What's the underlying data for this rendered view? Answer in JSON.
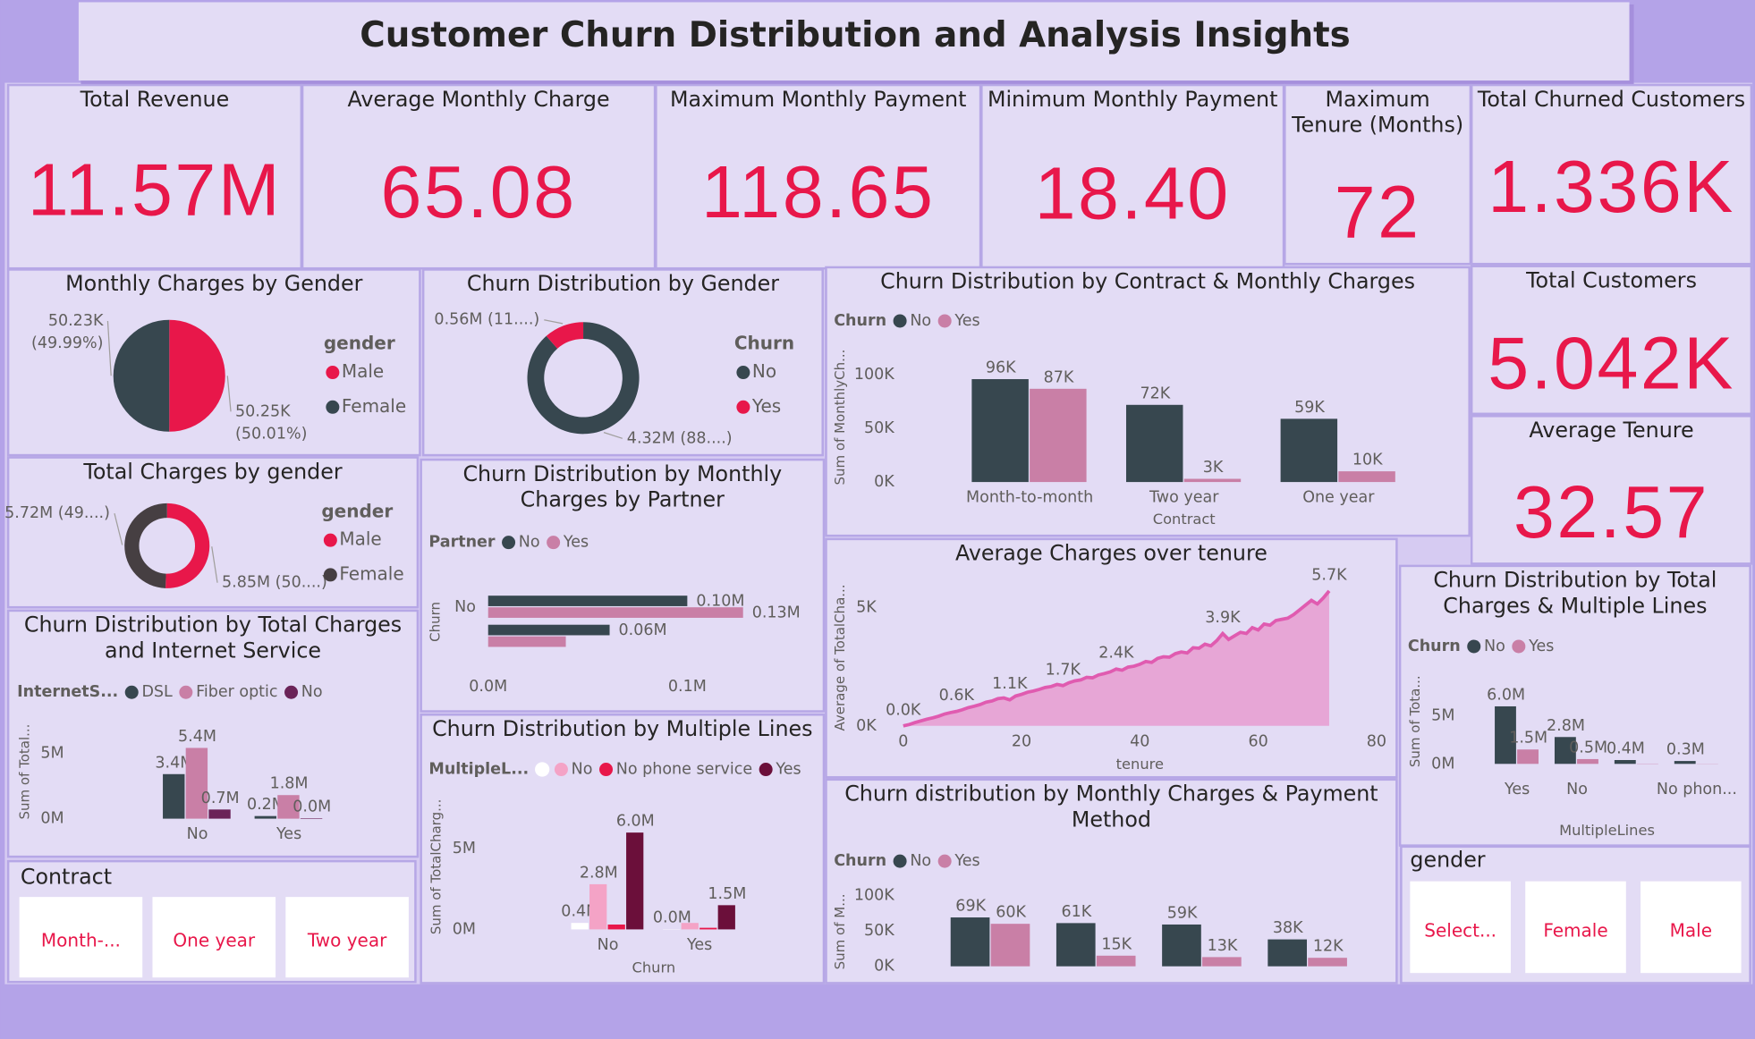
{
  "title": "Customer Churn Distribution and Analysis Insights",
  "kpis": [
    {
      "label": "Total Revenue",
      "value": "11.57M"
    },
    {
      "label": "Average Monthly Charge",
      "value": "65.08"
    },
    {
      "label": "Maximum Monthly Payment",
      "value": "118.65"
    },
    {
      "label": "Minimum Monthly Payment",
      "value": "18.40"
    },
    {
      "label": "Maximum Tenure (Months)",
      "value": "72"
    },
    {
      "label": "Total Churned Customers",
      "value": "1.336K"
    },
    {
      "label": "Total Customers",
      "value": "5.042K"
    },
    {
      "label": "Average Tenure",
      "value": "32.57"
    }
  ],
  "chart_data": [
    {
      "type": "pie",
      "title": "Monthly Charges by Gender",
      "legend_title": "gender",
      "categories": [
        "Male",
        "Female"
      ],
      "values": [
        50250,
        50230
      ],
      "value_labels": [
        "50.25K",
        "50.23K"
      ],
      "percent_labels": [
        "(50.01%)",
        "(49.99%)"
      ],
      "colors": [
        "#e8174a",
        "#37474f"
      ]
    },
    {
      "type": "pie",
      "donut": true,
      "title": "Churn Distribution by Gender",
      "legend_title": "Churn",
      "categories": [
        "No",
        "Yes"
      ],
      "values": [
        4320000,
        560000
      ],
      "value_labels": [
        "4.32M (88....)",
        "0.56M (11....)"
      ],
      "colors": [
        "#37474f",
        "#e8174a"
      ]
    },
    {
      "type": "pie",
      "donut": true,
      "title": "Total Charges by gender",
      "legend_title": "gender",
      "categories": [
        "Male",
        "Female"
      ],
      "values": [
        5850000,
        5720000
      ],
      "value_labels": [
        "5.85M (50....)",
        "5.72M (49....)"
      ],
      "colors": [
        "#e8174a",
        "#463f42"
      ]
    },
    {
      "type": "bar",
      "title": "Churn Distribution by Total Charges and Internet Service",
      "legend_title": "InternetS...",
      "y_label": "Sum of Total...",
      "categories": [
        "No",
        "Yes"
      ],
      "series": [
        {
          "name": "DSL",
          "color": "#37474f",
          "values": [
            3400000,
            200000
          ],
          "value_labels": [
            "3.4M",
            "0.2M"
          ]
        },
        {
          "name": "Fiber optic",
          "color": "#c97fa6",
          "values": [
            5400000,
            1800000
          ],
          "value_labels": [
            "5.4M",
            "1.8M"
          ]
        },
        {
          "name": "No",
          "color": "#6b2358",
          "values": [
            700000,
            40000
          ],
          "value_labels": [
            "0.7M",
            "0.0M"
          ]
        }
      ],
      "ylim": [
        0,
        7000000
      ],
      "yticks": [
        {
          "value": 0,
          "label": "0M"
        },
        {
          "value": 5000000,
          "label": "5M"
        }
      ]
    },
    {
      "type": "hbar",
      "title": "Churn Distribution by Monthly Charges by Partner",
      "legend_title": "Partner",
      "y_label": "Churn",
      "categories": [
        "No",
        null
      ],
      "series": [
        {
          "name": "No",
          "color": "#37474f",
          "values": [
            100000,
            61000
          ],
          "value_labels": [
            "0.10M",
            "0.06M"
          ]
        },
        {
          "name": "Yes",
          "color": "#c97fa6",
          "values": [
            128000,
            39000
          ],
          "value_labels": [
            "0.13M",
            null
          ]
        }
      ],
      "xlim": [
        0,
        150000
      ],
      "xticks": [
        {
          "value": 0,
          "label": "0.0M"
        },
        {
          "value": 100000,
          "label": "0.1M"
        }
      ]
    },
    {
      "type": "bar",
      "title": "Churn Distribution by Multiple Lines",
      "legend_title": "MultipleL...",
      "x_label": "Churn",
      "y_label": "Sum of TotalCharg...",
      "categories": [
        "No",
        "Yes"
      ],
      "series": [
        {
          "name": null,
          "color": "#ffffff",
          "values": [
            400000,
            20000
          ],
          "value_labels": [
            "0.4M",
            "0.0M"
          ]
        },
        {
          "name": "No",
          "color": "#f4a3c6",
          "values": [
            2800000,
            400000
          ],
          "value_labels": [
            "2.8M",
            null
          ]
        },
        {
          "name": "No phone service",
          "color": "#e8174a",
          "values": [
            300000,
            100000
          ],
          "value_labels": [
            null,
            null
          ]
        },
        {
          "name": "Yes",
          "color": "#6b0f3a",
          "values": [
            6000000,
            1500000
          ],
          "value_labels": [
            "6.0M",
            "1.5M"
          ]
        }
      ],
      "ylim": [
        0,
        7000000
      ],
      "yticks": [
        {
          "value": 0,
          "label": "0M"
        },
        {
          "value": 5000000,
          "label": "5M"
        }
      ]
    },
    {
      "type": "bar",
      "title": "Churn Distribution by Contract & Monthly Charges",
      "legend_title": "Churn",
      "x_label": "Contract",
      "y_label": "Sum of MonthlyCh...",
      "categories": [
        "Month-to-month",
        "Two year",
        "One year"
      ],
      "series": [
        {
          "name": "No",
          "color": "#37474f",
          "values": [
            96000,
            72000,
            59000
          ],
          "value_labels": [
            "96K",
            "72K",
            "59K"
          ]
        },
        {
          "name": "Yes",
          "color": "#c97fa6",
          "values": [
            87000,
            3000,
            10000
          ],
          "value_labels": [
            "87K",
            "3K",
            "10K"
          ]
        }
      ],
      "ylim": [
        0,
        120000
      ],
      "yticks": [
        {
          "value": 0,
          "label": "0K"
        },
        {
          "value": 50000,
          "label": "50K"
        },
        {
          "value": 100000,
          "label": "100K"
        }
      ]
    },
    {
      "type": "area",
      "title": "Average Charges over tenure",
      "x_label": "tenure",
      "y_label": "Average of TotalCha...",
      "line_color": "#e05bb0",
      "area_color": "#e7a6d6",
      "x": [
        0,
        1,
        2,
        3,
        4,
        5,
        6,
        7,
        8,
        9,
        10,
        11,
        12,
        13,
        14,
        15,
        16,
        17,
        18,
        19,
        20,
        21,
        22,
        23,
        24,
        25,
        26,
        27,
        28,
        29,
        30,
        31,
        32,
        33,
        34,
        35,
        36,
        37,
        38,
        39,
        40,
        41,
        42,
        43,
        44,
        45,
        46,
        47,
        48,
        49,
        50,
        51,
        52,
        53,
        54,
        55,
        56,
        57,
        58,
        59,
        60,
        61,
        62,
        63,
        64,
        65,
        66,
        67,
        68,
        69,
        70,
        71,
        72
      ],
      "values": [
        0,
        56,
        140,
        211,
        280,
        340,
        410,
        500,
        560,
        610,
        680,
        770,
        830,
        900,
        1000,
        1050,
        1150,
        1180,
        1100,
        1260,
        1330,
        1420,
        1470,
        1540,
        1620,
        1660,
        1750,
        1700,
        1820,
        1900,
        1940,
        2050,
        2030,
        2150,
        2210,
        2280,
        2400,
        2350,
        2480,
        2520,
        2600,
        2720,
        2680,
        2850,
        2920,
        2900,
        3050,
        3120,
        3080,
        3300,
        3280,
        3450,
        3380,
        3600,
        3900,
        3650,
        3800,
        3950,
        3900,
        4150,
        4050,
        4300,
        4250,
        4450,
        4500,
        4550,
        4700,
        4900,
        5100,
        5300,
        5150,
        5400,
        5700
      ],
      "value_labels": [
        "0.0K",
        null,
        null,
        null,
        null,
        null,
        null,
        null,
        null,
        "0.6K",
        null,
        null,
        null,
        null,
        null,
        null,
        null,
        null,
        "1.1K",
        null,
        null,
        null,
        null,
        null,
        null,
        null,
        null,
        "1.7K",
        null,
        null,
        null,
        null,
        null,
        null,
        null,
        null,
        "2.4K",
        null,
        null,
        null,
        null,
        null,
        null,
        null,
        null,
        null,
        null,
        null,
        null,
        null,
        null,
        null,
        null,
        null,
        "3.9K",
        null,
        null,
        null,
        null,
        null,
        null,
        null,
        null,
        null,
        null,
        null,
        null,
        null,
        null,
        null,
        null,
        null,
        "5.7K"
      ],
      "xlim": [
        0,
        80
      ],
      "xticks": [
        0,
        20,
        40,
        60,
        80
      ],
      "ylim": [
        0,
        6000
      ],
      "yticks": [
        {
          "value": 0,
          "label": "0K"
        },
        {
          "value": 5000,
          "label": "5K"
        }
      ]
    },
    {
      "type": "bar",
      "title": "Churn distribution by Monthly Charges & Payment Method",
      "legend_title": "Churn",
      "y_label": "Sum of M...",
      "categories": [
        null,
        null,
        null,
        null
      ],
      "series": [
        {
          "name": "No",
          "color": "#37474f",
          "values": [
            69000,
            61000,
            59000,
            38000
          ],
          "value_labels": [
            "69K",
            "61K",
            "59K",
            "38K"
          ]
        },
        {
          "name": "Yes",
          "color": "#c97fa6",
          "values": [
            60000,
            15000,
            13000,
            12000
          ],
          "value_labels": [
            "60K",
            "15K",
            "13K",
            "12K"
          ]
        }
      ],
      "ylim": [
        0,
        120000
      ],
      "yticks": [
        {
          "value": 0,
          "label": "0K"
        },
        {
          "value": 50000,
          "label": "50K"
        },
        {
          "value": 100000,
          "label": "100K"
        }
      ]
    },
    {
      "type": "bar",
      "title": "Churn Distribution by Total Charges & Multiple Lines",
      "legend_title": "Churn",
      "x_label": "MultipleLines",
      "y_label": "Sum of Tota...",
      "categories": [
        "Yes",
        "No",
        null,
        "No phon..."
      ],
      "series": [
        {
          "name": "No",
          "color": "#37474f",
          "values": [
            6000000,
            2800000,
            400000,
            300000
          ],
          "value_labels": [
            "6.0M",
            "2.8M",
            "0.4M",
            "0.3M"
          ]
        },
        {
          "name": "Yes",
          "color": "#c97fa6",
          "values": [
            1500000,
            500000,
            30000,
            20000
          ],
          "value_labels": [
            "1.5M",
            "0.5M",
            null,
            null
          ]
        }
      ],
      "ylim": [
        0,
        7000000
      ],
      "yticks": [
        {
          "value": 0,
          "label": "0M"
        },
        {
          "value": 5000000,
          "label": "5M"
        }
      ]
    }
  ],
  "slicers": [
    {
      "title": "Contract",
      "items": [
        "Month-...",
        "One year",
        "Two year"
      ]
    },
    {
      "title": "gender",
      "items": [
        "Select...",
        "Female",
        "Male"
      ]
    }
  ]
}
